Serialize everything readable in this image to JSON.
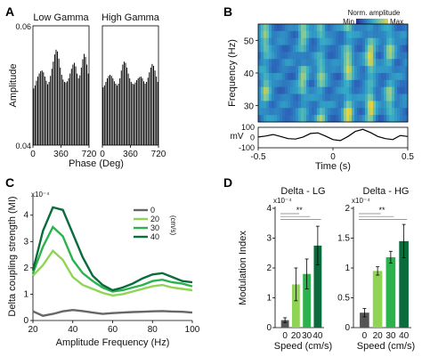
{
  "panel_labels": {
    "a": "A",
    "b": "B",
    "c": "C",
    "d": "D"
  },
  "chart_data": [
    {
      "id": "A",
      "type": "bar",
      "panels": [
        {
          "title": "Low Gamma",
          "values": [
            0.0495,
            0.05,
            0.0508,
            0.0515,
            0.052,
            0.0524,
            0.0525,
            0.0522,
            0.0515,
            0.0508,
            0.0502,
            0.0506,
            0.0516,
            0.0528,
            0.054,
            0.0552,
            0.056,
            0.0557,
            0.0545,
            0.053,
            0.0518,
            0.051,
            0.0506,
            0.0505,
            0.0507,
            0.0512,
            0.052,
            0.0528,
            0.0535,
            0.0538,
            0.0532,
            0.052,
            0.0512,
            0.0517,
            0.053,
            0.0544,
            0.0553,
            0.0548,
            0.0535,
            0.052
          ]
        },
        {
          "title": "High Gamma",
          "values": [
            0.0497,
            0.05,
            0.0506,
            0.0512,
            0.0516,
            0.0518,
            0.0516,
            0.0512,
            0.0507,
            0.0503,
            0.05,
            0.0503,
            0.0512,
            0.0525,
            0.0535,
            0.054,
            0.0538,
            0.053,
            0.052,
            0.0512,
            0.0506,
            0.0503,
            0.0502,
            0.0505,
            0.0509,
            0.0512,
            0.0514,
            0.0515,
            0.0512,
            0.0507,
            0.0503,
            0.0506,
            0.0513,
            0.0522,
            0.053,
            0.0536,
            0.0533,
            0.0525,
            0.0515,
            0.0506
          ]
        }
      ],
      "xlabel": "Phase (Deg)",
      "xticks": [
        "0",
        "360",
        "720"
      ],
      "ylabel": "Amplitude",
      "yticks": [
        "0.04",
        "0.06"
      ],
      "ylim": [
        0.04,
        0.06
      ]
    },
    {
      "id": "B",
      "type": "heatmap",
      "colorbar_title": "Norm. amplitude",
      "colorbar_min": "Min",
      "colorbar_max": "Max",
      "colorscale": [
        "#2b2f8e",
        "#2c6cbd",
        "#32a8c8",
        "#7cc8a0",
        "#e8d23a"
      ],
      "ylabel": "Frequency (Hz)",
      "yticks": [
        "30",
        "40",
        "50"
      ],
      "ylim": [
        25,
        55
      ],
      "xlim": [
        -0.5,
        0.5
      ],
      "bright_times": [
        -0.45,
        -0.2,
        -0.08,
        0.1,
        0.25,
        0.38
      ],
      "trace": {
        "ylabel": "mV",
        "yticks": [
          "100",
          "0",
          "-100"
        ],
        "xlabel": "Time (s)",
        "xticks": [
          "-0.5",
          "0",
          "0.5"
        ],
        "t": [
          -0.5,
          -0.45,
          -0.4,
          -0.35,
          -0.3,
          -0.25,
          -0.2,
          -0.15,
          -0.1,
          -0.05,
          0,
          0.05,
          0.1,
          0.15,
          0.2,
          0.25,
          0.3,
          0.35,
          0.4,
          0.45,
          0.5
        ],
        "v": [
          5,
          15,
          30,
          10,
          -10,
          -15,
          5,
          40,
          45,
          15,
          -20,
          -30,
          10,
          60,
          80,
          50,
          10,
          -10,
          -20,
          20,
          10
        ]
      }
    },
    {
      "id": "C",
      "type": "line",
      "x": [
        20,
        25,
        30,
        35,
        40,
        45,
        50,
        55,
        60,
        65,
        70,
        75,
        80,
        85,
        90,
        95,
        100
      ],
      "series": [
        {
          "name": "0",
          "color": "#666666",
          "values": [
            0.35,
            0.18,
            0.25,
            0.35,
            0.4,
            0.36,
            0.3,
            0.25,
            0.28,
            0.3,
            0.32,
            0.33,
            0.35,
            0.36,
            0.34,
            0.33,
            0.3
          ]
        },
        {
          "name": "20",
          "color": "#8fd454",
          "values": [
            1.7,
            2.1,
            2.65,
            2.3,
            1.65,
            1.35,
            1.2,
            1.05,
            0.95,
            1.0,
            1.1,
            1.2,
            1.3,
            1.35,
            1.25,
            1.2,
            1.15
          ]
        },
        {
          "name": "30",
          "color": "#2bb24c",
          "values": [
            1.8,
            2.8,
            3.55,
            3.2,
            2.3,
            1.8,
            1.5,
            1.25,
            1.1,
            1.15,
            1.25,
            1.35,
            1.5,
            1.55,
            1.45,
            1.4,
            1.3
          ]
        },
        {
          "name": "40",
          "color": "#0a6b3c",
          "values": [
            1.9,
            3.4,
            4.3,
            4.2,
            3.3,
            2.4,
            1.7,
            1.35,
            1.15,
            1.25,
            1.4,
            1.6,
            1.75,
            1.8,
            1.65,
            1.5,
            1.45
          ]
        }
      ],
      "legend_unit": "(cm/s)",
      "xlabel": "Amplitude Frequency (Hz)",
      "ylabel": "Delta coupling strength (MI)",
      "exponent": "x10⁻⁴",
      "xticks": [
        "20",
        "40",
        "60",
        "80",
        "100"
      ],
      "yticks": [
        "0",
        "1",
        "2",
        "3",
        "4"
      ],
      "xlim": [
        20,
        100
      ],
      "ylim": [
        0,
        4.6
      ]
    },
    {
      "id": "D-LG",
      "type": "bar",
      "title": "Delta - LG",
      "categories": [
        "0",
        "20",
        "30",
        "40"
      ],
      "values": [
        0.25,
        1.45,
        1.8,
        2.75
      ],
      "errors": [
        0.08,
        0.55,
        0.5,
        0.65
      ],
      "colors": [
        "#555555",
        "#8fd454",
        "#2bb24c",
        "#0a6b3c"
      ],
      "significance": "**",
      "exponent": "x10⁻⁴",
      "yticks": [
        "0",
        "1",
        "2",
        "3",
        "4"
      ],
      "ylim": [
        0,
        4
      ],
      "ylabel": "Modulation Index",
      "xlabel": "Speed (cm/s)"
    },
    {
      "id": "D-HG",
      "type": "bar",
      "title": "Delta - HG",
      "categories": [
        "0",
        "20",
        "30",
        "40"
      ],
      "values": [
        0.25,
        0.95,
        1.18,
        1.45
      ],
      "errors": [
        0.07,
        0.07,
        0.1,
        0.28
      ],
      "colors": [
        "#555555",
        "#8fd454",
        "#2bb24c",
        "#0a6b3c"
      ],
      "significance": "**",
      "exponent": "x10⁻⁴",
      "yticks": [
        "0",
        "0.5",
        "1",
        "1.5",
        "2"
      ],
      "ylim": [
        0,
        2
      ],
      "xlabel": "Speed (cm/s)"
    }
  ]
}
